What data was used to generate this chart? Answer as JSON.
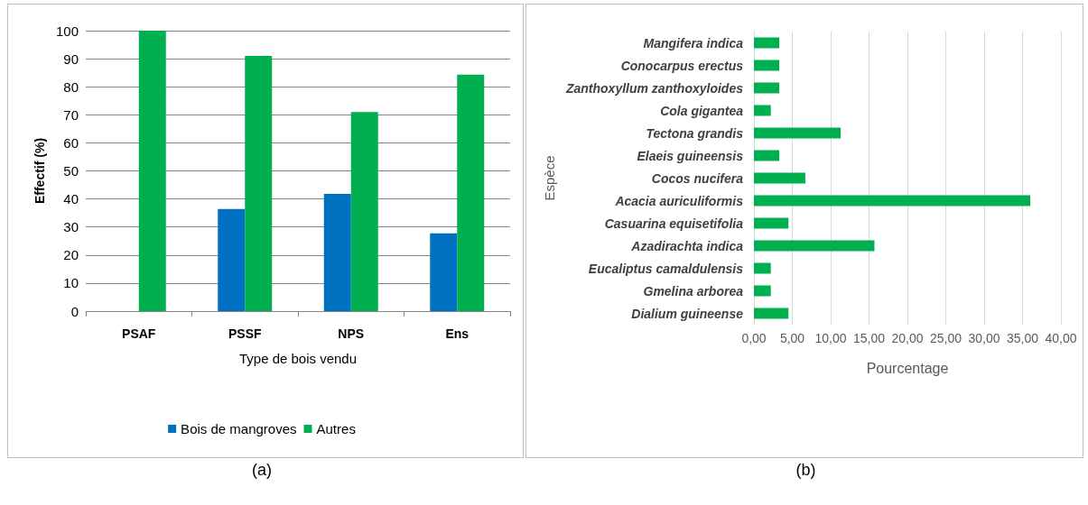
{
  "chart_data": [
    {
      "type": "bar",
      "xlabel": "Type de bois vendu",
      "ylabel": "Effectif (%)",
      "categories": [
        "PSAF",
        "PSSF",
        "NPS",
        "Ens"
      ],
      "series": [
        {
          "name": "Bois de mangroves",
          "color": "#0070c0",
          "values": [
            0,
            36.4,
            41.8,
            27.7
          ]
        },
        {
          "name": "Autres",
          "color": "#00b050",
          "values": [
            100,
            91,
            71,
            84.3
          ]
        }
      ],
      "ylim": [
        0,
        100
      ],
      "yticks": [
        0,
        10,
        20,
        30,
        40,
        50,
        60,
        70,
        80,
        90,
        100
      ],
      "grid": "y",
      "legend": "bottom",
      "annotations": [
        "(a)"
      ]
    },
    {
      "type": "bar",
      "orientation": "horizontal",
      "xlabel": "Pourcentage",
      "ylabel": "Espèce",
      "categories": [
        "Mangifera indica",
        "Conocarpus erectus",
        "Zanthoxyllum zanthoxyloides",
        "Cola gigantea",
        "Tectona grandis",
        "Elaeis guineensis",
        "Cocos nucifera",
        "Acacia auriculiformis",
        "Casuarina equisetifolia",
        "Azadirachta indica",
        "Eucaliptus camaldulensis",
        "Gmelina arborea",
        "Dialium guineense"
      ],
      "values": [
        3.3,
        3.3,
        3.3,
        2.2,
        11.3,
        3.3,
        6.7,
        36.0,
        4.5,
        15.7,
        2.2,
        2.2,
        4.5
      ],
      "color": "#00b050",
      "xlim": [
        0,
        40
      ],
      "xticks": [
        {
          "value": 0,
          "label": "0,00"
        },
        {
          "value": 5,
          "label": "5,00"
        },
        {
          "value": 10,
          "label": "10,00"
        },
        {
          "value": 15,
          "label": "15,00"
        },
        {
          "value": 20,
          "label": "20,00"
        },
        {
          "value": 25,
          "label": "25,00"
        },
        {
          "value": 30,
          "label": "30,00"
        },
        {
          "value": 35,
          "label": "35,00"
        },
        {
          "value": 40,
          "label": "40,00"
        }
      ],
      "grid": "x",
      "annotations": [
        "(b)"
      ]
    }
  ]
}
